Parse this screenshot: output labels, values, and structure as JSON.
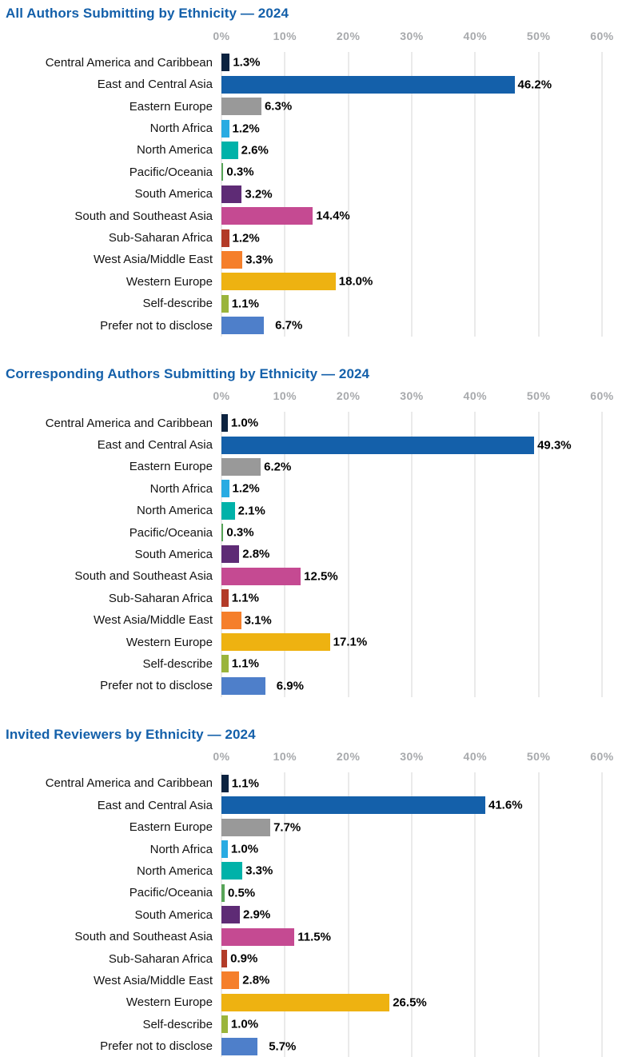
{
  "palette": {
    "title_blue": "#1460aa",
    "axis_label_gray": "#a7a9ac",
    "gridline_gray": "#eaeaea",
    "category_label_color": "#131313",
    "value_label_color": "#000000"
  },
  "categories": [
    "Central America and Caribbean",
    "East and Central Asia",
    "Eastern Europe",
    "North Africa",
    "North America",
    "Pacific/Oceania",
    "South America",
    "South and Southeast Asia",
    "Sub-Saharan Africa",
    "West Asia/Middle East",
    "Western Europe",
    "Self-describe",
    "Prefer not to disclose"
  ],
  "category_colors": [
    "#0c2340",
    "#1460aa",
    "#999999",
    "#29abe2",
    "#00b2a9",
    "#57a457",
    "#5e2b75",
    "#c54a92",
    "#b23b28",
    "#f57f2b",
    "#eeb211",
    "#9ab43c",
    "#4e7fca"
  ],
  "chart_data": [
    {
      "type": "bar",
      "orientation": "horizontal",
      "title": "All Authors Submitting by Ethnicity — 2024",
      "categories": [
        "Central America and Caribbean",
        "East and Central Asia",
        "Eastern Europe",
        "North Africa",
        "North America",
        "Pacific/Oceania",
        "South America",
        "South and Southeast Asia",
        "Sub-Saharan Africa",
        "West Asia/Middle East",
        "Western Europe",
        "Self-describe",
        "Prefer not to disclose"
      ],
      "values": [
        1.3,
        46.2,
        6.3,
        1.2,
        2.6,
        0.3,
        3.2,
        14.4,
        1.2,
        3.3,
        18.0,
        1.1,
        6.7
      ],
      "value_labels": [
        "1.3%",
        "46.2%",
        "6.3%",
        "1.2%",
        "2.6%",
        "0.3%",
        "3.2%",
        "14.4%",
        "1.2%",
        "3.3%",
        "18.0%",
        "1.1%",
        "6.7%"
      ],
      "x_ticks": [
        "0%",
        "10%",
        "20%",
        "30%",
        "40%",
        "50%",
        "60%"
      ],
      "xlim": [
        0,
        60
      ],
      "grid": true,
      "legend": false
    },
    {
      "type": "bar",
      "orientation": "horizontal",
      "title": "Corresponding Authors Submitting by Ethnicity — 2024",
      "categories": [
        "Central America and Caribbean",
        "East and Central Asia",
        "Eastern Europe",
        "North Africa",
        "North America",
        "Pacific/Oceania",
        "South America",
        "South and Southeast Asia",
        "Sub-Saharan Africa",
        "West Asia/Middle East",
        "Western Europe",
        "Self-describe",
        "Prefer not to disclose"
      ],
      "values": [
        1.0,
        49.3,
        6.2,
        1.2,
        2.1,
        0.3,
        2.8,
        12.5,
        1.1,
        3.1,
        17.1,
        1.1,
        6.9
      ],
      "value_labels": [
        "1.0%",
        "49.3%",
        "6.2%",
        "1.2%",
        "2.1%",
        "0.3%",
        "2.8%",
        "12.5%",
        "1.1%",
        "3.1%",
        "17.1%",
        "1.1%",
        "6.9%"
      ],
      "x_ticks": [
        "0%",
        "10%",
        "20%",
        "30%",
        "40%",
        "50%",
        "60%"
      ],
      "xlim": [
        0,
        60
      ],
      "grid": true,
      "legend": false
    },
    {
      "type": "bar",
      "orientation": "horizontal",
      "title": "Invited Reviewers by Ethnicity — 2024",
      "categories": [
        "Central America and Caribbean",
        "East and Central Asia",
        "Eastern Europe",
        "North Africa",
        "North America",
        "Pacific/Oceania",
        "South America",
        "South and Southeast Asia",
        "Sub-Saharan Africa",
        "West Asia/Middle East",
        "Western Europe",
        "Self-describe",
        "Prefer not to disclose"
      ],
      "values": [
        1.1,
        41.6,
        7.7,
        1.0,
        3.3,
        0.5,
        2.9,
        11.5,
        0.9,
        2.8,
        26.5,
        1.0,
        5.7
      ],
      "value_labels": [
        "1.1%",
        "41.6%",
        "7.7%",
        "1.0%",
        "3.3%",
        "0.5%",
        "2.9%",
        "11.5%",
        "0.9%",
        "2.8%",
        "26.5%",
        "1.0%",
        "5.7%"
      ],
      "x_ticks": [
        "0%",
        "10%",
        "20%",
        "30%",
        "40%",
        "50%",
        "60%"
      ],
      "xlim": [
        0,
        60
      ],
      "grid": true,
      "legend": false
    }
  ]
}
